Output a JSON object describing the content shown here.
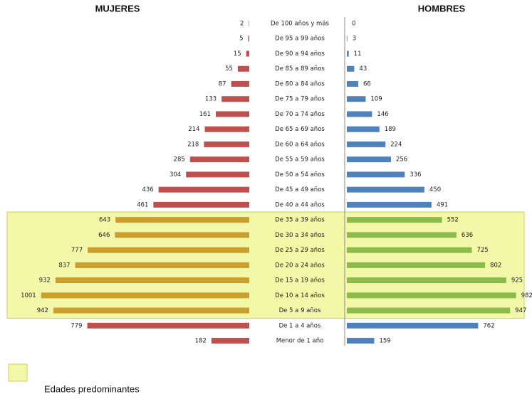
{
  "chart_data": {
    "type": "pyramid",
    "categories": [
      "De 100 años y más",
      "De 95 a 99 años",
      "De 90 a 94 años",
      "De 85 a 89 años",
      "De 80 a 84 años",
      "De 75 a 79 años",
      "De 70 a 74 años",
      "De 65 a 69 años",
      "De 60 a 64 años",
      "De 55 a 59 años",
      "De 50 a 54 años",
      "De 45 a 49 años",
      "De 40 a 44 años",
      "De 35 a 39 años",
      "De 30 a 34 años",
      "De 25 a 29 años",
      "De 20 a 24 años",
      "De 15 a 19 años",
      "De 10 a 14 años",
      "De 5 a 9 años",
      "De 1 a 4 años",
      "Menor de 1 año"
    ],
    "series": [
      {
        "name": "MUJERES",
        "color": "#c0504d",
        "highlight_color": "#cc9e2e",
        "values": [
          2,
          5,
          15,
          55,
          87,
          133,
          161,
          214,
          218,
          285,
          304,
          436,
          461,
          643,
          646,
          777,
          837,
          932,
          1001,
          942,
          779,
          182
        ]
      },
      {
        "name": "HOMBRES",
        "color": "#4f81bd",
        "highlight_color": "#8dbb4a",
        "values": [
          0,
          3,
          11,
          43,
          66,
          109,
          146,
          189,
          224,
          256,
          336,
          450,
          491,
          552,
          636,
          725,
          802,
          925,
          982,
          947,
          762,
          159
        ]
      }
    ],
    "highlight": {
      "label": "Edades predominantes",
      "color": "#f3f7a8",
      "from": "De 35 a 39 años",
      "to": "De 5 a 9 años"
    }
  }
}
